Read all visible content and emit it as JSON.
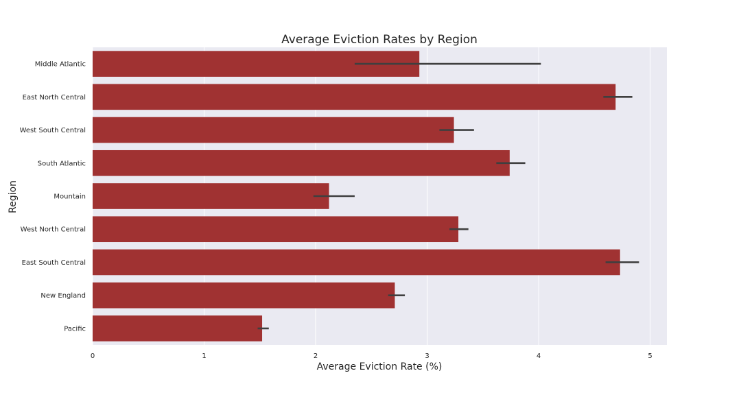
{
  "chart_data": {
    "type": "bar",
    "orientation": "horizontal",
    "title": "Average Eviction Rates by Region",
    "xlabel": "Average Eviction Rate (%)",
    "ylabel": "Region",
    "xlim": [
      0,
      5.15
    ],
    "xticks": [
      0,
      1,
      2,
      3,
      4,
      5
    ],
    "grid": true,
    "bar_color": "#a03232",
    "errorbar_color": "#3f3f3f",
    "background_color": "#eaeaf2",
    "categories": [
      "Middle Atlantic",
      "East North Central",
      "West South Central",
      "South Atlantic",
      "Mountain",
      "West North Central",
      "East South Central",
      "New England",
      "Pacific"
    ],
    "values": [
      2.93,
      4.69,
      3.24,
      3.74,
      2.12,
      3.28,
      4.73,
      2.71,
      1.52
    ],
    "error_low": [
      2.35,
      4.58,
      3.11,
      3.62,
      1.98,
      3.2,
      4.6,
      2.65,
      1.48
    ],
    "error_high": [
      4.02,
      4.84,
      3.42,
      3.88,
      2.35,
      3.37,
      4.9,
      2.8,
      1.58
    ]
  }
}
